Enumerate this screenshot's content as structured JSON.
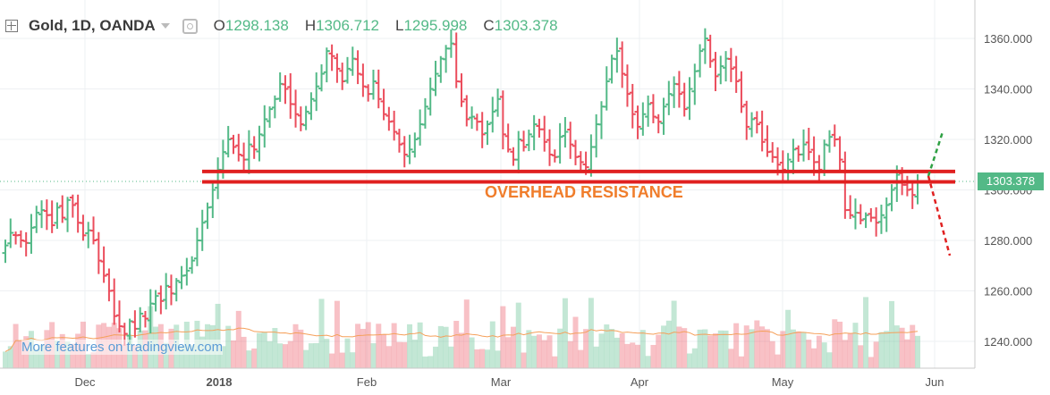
{
  "legend": {
    "symbol": "Gold, 1D, OANDA",
    "open_label": "O",
    "open": "1298.138",
    "high_label": "H",
    "high": "1306.712",
    "low_label": "L",
    "low": "1295.998",
    "close_label": "C",
    "close": "1303.378"
  },
  "watermark": "More features on tradingview.com",
  "annotation": "OVERHEAD RESISTANCE",
  "current_price": "1303.378",
  "colors": {
    "up": "#53b987",
    "down": "#eb4d5c",
    "resistance": "#e02020",
    "annotation": "#f07d2b",
    "volume_ma": "#f5a05a"
  },
  "chart_data": {
    "type": "ohlc",
    "ylim": [
      1228,
      1372
    ],
    "yticks": [
      "1240.000",
      "1260.000",
      "1280.000",
      "1300.000",
      "1320.000",
      "1340.000",
      "1360.000"
    ],
    "xticks": [
      "Dec",
      "2018",
      "Feb",
      "Mar",
      "Apr",
      "May",
      "Jun"
    ],
    "resistance_levels": [
      1303.2,
      1307.3
    ],
    "projection": {
      "up_to": 1323,
      "down_to": 1274
    },
    "closes": [
      1278,
      1283,
      1282,
      1280,
      1279,
      1285,
      1291,
      1292,
      1290,
      1286,
      1293,
      1289,
      1296,
      1294,
      1287,
      1282,
      1284,
      1280,
      1272,
      1266,
      1260,
      1250,
      1246,
      1243,
      1248,
      1245,
      1251,
      1249,
      1255,
      1258,
      1256,
      1262,
      1259,
      1264,
      1266,
      1268,
      1272,
      1280,
      1287,
      1293,
      1300,
      1308,
      1315,
      1320,
      1317,
      1314,
      1312,
      1318,
      1316,
      1322,
      1328,
      1332,
      1336,
      1342,
      1340,
      1334,
      1330,
      1326,
      1331,
      1336,
      1341,
      1346,
      1355,
      1353,
      1348,
      1343,
      1348,
      1352,
      1346,
      1341,
      1338,
      1343,
      1336,
      1330,
      1327,
      1323,
      1318,
      1314,
      1316,
      1320,
      1326,
      1333,
      1340,
      1346,
      1352,
      1356,
      1358,
      1343,
      1335,
      1328,
      1329,
      1327,
      1322,
      1326,
      1331,
      1336,
      1322,
      1316,
      1312,
      1320,
      1317,
      1322,
      1326,
      1324,
      1319,
      1314,
      1313,
      1321,
      1323,
      1318,
      1313,
      1311,
      1309,
      1317,
      1326,
      1333,
      1343,
      1352,
      1355,
      1346,
      1338,
      1330,
      1325,
      1330,
      1334,
      1329,
      1327,
      1333,
      1338,
      1342,
      1338,
      1332,
      1340,
      1347,
      1355,
      1360,
      1351,
      1345,
      1349,
      1352,
      1348,
      1343,
      1333,
      1325,
      1328,
      1326,
      1319,
      1315,
      1313,
      1310,
      1308,
      1312,
      1316,
      1314,
      1318,
      1315,
      1311,
      1308,
      1318,
      1321,
      1320,
      1312,
      1292,
      1290,
      1291,
      1288,
      1290,
      1289,
      1287,
      1290,
      1294,
      1300,
      1306,
      1302,
      1300,
      1298,
      1303
    ]
  }
}
